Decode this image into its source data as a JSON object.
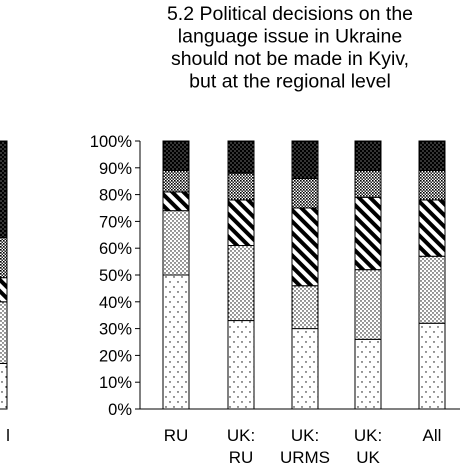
{
  "chart_data": {
    "type": "bar",
    "stacked": true,
    "title_lines": [
      "5.2 Political decisions on the",
      "language issue in Ukraine",
      "should not be made in Kyiv,",
      "but at the regional level"
    ],
    "categories": [
      [
        "RU"
      ],
      [
        "UK:",
        "RU"
      ],
      [
        "UK:",
        "URMS"
      ],
      [
        "UK:",
        "UK"
      ],
      [
        "All"
      ]
    ],
    "ylim": [
      0,
      100
    ],
    "ytick_labels": [
      "0%",
      "10%",
      "20%",
      "30%",
      "40%",
      "50%",
      "60%",
      "70%",
      "80%",
      "90%",
      "100%"
    ],
    "ytick_values": [
      0,
      10,
      20,
      30,
      40,
      50,
      60,
      70,
      80,
      90,
      100
    ],
    "grid": false,
    "series": [
      {
        "pattern": "sparse-dots",
        "values": [
          50,
          33,
          30,
          26,
          32
        ]
      },
      {
        "pattern": "medium-dots",
        "values": [
          24,
          28,
          16,
          26,
          25
        ]
      },
      {
        "pattern": "diagonal-stripes",
        "values": [
          7,
          17,
          29,
          27,
          21
        ]
      },
      {
        "pattern": "dense-dots",
        "values": [
          8,
          10,
          11,
          10,
          11
        ]
      },
      {
        "pattern": "dark-dots",
        "values": [
          11,
          12,
          14,
          11,
          11
        ]
      }
    ],
    "partial_left_chart": {
      "visible_category_label": "l",
      "series_values": [
        17,
        23,
        9,
        15,
        36
      ]
    }
  }
}
